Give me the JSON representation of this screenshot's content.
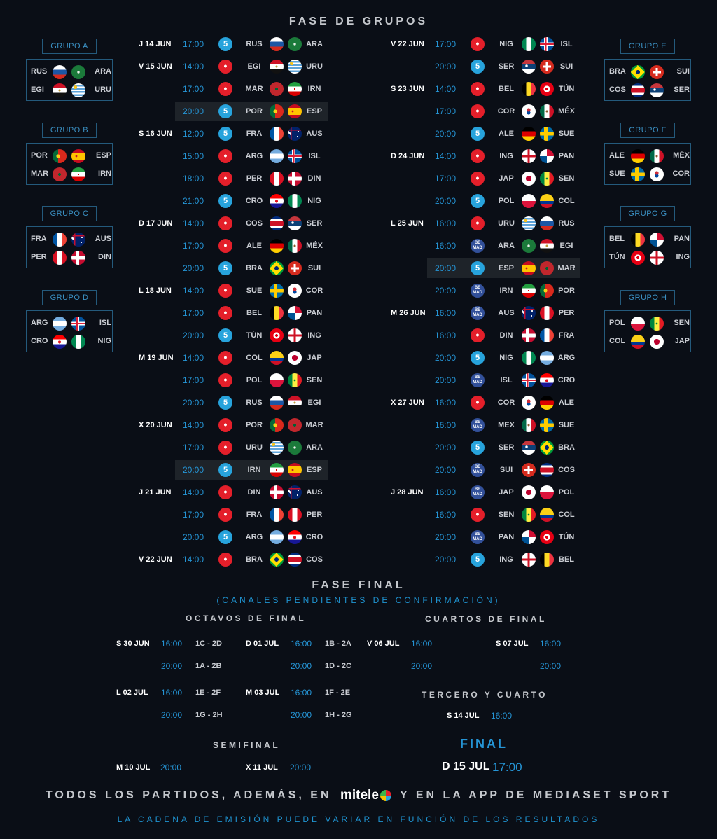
{
  "titles": {
    "groups": "FASE DE GRUPOS",
    "final_phase": "FASE FINAL",
    "final_phase_sub": "(CANALES PENDIENTES DE CONFIRMACIÓN)",
    "octavos": "OCTAVOS DE FINAL",
    "cuartos": "CUARTOS DE FINAL",
    "tercero": "TERCERO Y CUARTO",
    "semifinal": "SEMIFINAL",
    "final": "FINAL",
    "footer_pre": "TODOS LOS PARTIDOS, ADEMÁS, EN",
    "footer_brand": "mitele",
    "footer_post": "Y EN LA APP DE MEDIASET SPORT",
    "footer_note": "LA CADENA DE EMISIÓN PUEDE VARIAR EN FUNCIÓN DE LOS RESULTADOS"
  },
  "channel_icons": {
    "5": "cuatro-five-logo",
    "c": "cuatro-channel-logo",
    "bm": "be-mad-logo"
  },
  "groups": [
    {
      "name": "GRUPO A",
      "teams": [
        "RUS",
        "ARA",
        "EGI",
        "URU"
      ]
    },
    {
      "name": "GRUPO B",
      "teams": [
        "POR",
        "ESP",
        "MAR",
        "IRN"
      ]
    },
    {
      "name": "GRUPO C",
      "teams": [
        "FRA",
        "AUS",
        "PER",
        "DIN"
      ]
    },
    {
      "name": "GRUPO D",
      "teams": [
        "ARG",
        "ISL",
        "CRO",
        "NIG"
      ]
    },
    {
      "name": "GRUPO E",
      "teams": [
        "BRA",
        "SUI",
        "COS",
        "SER"
      ]
    },
    {
      "name": "GRUPO F",
      "teams": [
        "ALE",
        "MÉX",
        "SUE",
        "COR"
      ]
    },
    {
      "name": "GRUPO G",
      "teams": [
        "BEL",
        "PAN",
        "TÚN",
        "ING"
      ]
    },
    {
      "name": "GRUPO H",
      "teams": [
        "POL",
        "SEN",
        "COL",
        "JAP"
      ]
    }
  ],
  "schedule_left": [
    {
      "day": "J 14 JUN",
      "time": "17:00",
      "ch": "5",
      "home": "RUS",
      "away": "ARA"
    },
    {
      "day": "V 15 JUN",
      "time": "14:00",
      "ch": "c",
      "home": "EGI",
      "away": "URU"
    },
    {
      "day": "",
      "time": "17:00",
      "ch": "c",
      "home": "MAR",
      "away": "IRN"
    },
    {
      "day": "",
      "time": "20:00",
      "ch": "5",
      "home": "POR",
      "away": "ESP",
      "hl": true
    },
    {
      "day": "S 16 JUN",
      "time": "12:00",
      "ch": "5",
      "home": "FRA",
      "away": "AUS"
    },
    {
      "day": "",
      "time": "15:00",
      "ch": "c",
      "home": "ARG",
      "away": "ISL"
    },
    {
      "day": "",
      "time": "18:00",
      "ch": "c",
      "home": "PER",
      "away": "DIN"
    },
    {
      "day": "",
      "time": "21:00",
      "ch": "5",
      "home": "CRO",
      "away": "NIG"
    },
    {
      "day": "D 17 JUN",
      "time": "14:00",
      "ch": "c",
      "home": "COS",
      "away": "SER"
    },
    {
      "day": "",
      "time": "17:00",
      "ch": "c",
      "home": "ALE",
      "away": "MÉX"
    },
    {
      "day": "",
      "time": "20:00",
      "ch": "5",
      "home": "BRA",
      "away": "SUI"
    },
    {
      "day": "L 18 JUN",
      "time": "14:00",
      "ch": "c",
      "home": "SUE",
      "away": "COR"
    },
    {
      "day": "",
      "time": "17:00",
      "ch": "c",
      "home": "BEL",
      "away": "PAN"
    },
    {
      "day": "",
      "time": "20:00",
      "ch": "5",
      "home": "TÚN",
      "away": "ING"
    },
    {
      "day": "M 19 JUN",
      "time": "14:00",
      "ch": "c",
      "home": "COL",
      "away": "JAP"
    },
    {
      "day": "",
      "time": "17:00",
      "ch": "c",
      "home": "POL",
      "away": "SEN"
    },
    {
      "day": "",
      "time": "20:00",
      "ch": "5",
      "home": "RUS",
      "away": "EGI"
    },
    {
      "day": "X 20 JUN",
      "time": "14:00",
      "ch": "c",
      "home": "POR",
      "away": "MAR"
    },
    {
      "day": "",
      "time": "17:00",
      "ch": "c",
      "home": "URU",
      "away": "ARA"
    },
    {
      "day": "",
      "time": "20:00",
      "ch": "5",
      "home": "IRN",
      "away": "ESP",
      "hl": true
    },
    {
      "day": "J 21 JUN",
      "time": "14:00",
      "ch": "c",
      "home": "DIN",
      "away": "AUS"
    },
    {
      "day": "",
      "time": "17:00",
      "ch": "c",
      "home": "FRA",
      "away": "PER"
    },
    {
      "day": "",
      "time": "20:00",
      "ch": "5",
      "home": "ARG",
      "away": "CRO"
    },
    {
      "day": "V 22 JUN",
      "time": "14:00",
      "ch": "c",
      "home": "BRA",
      "away": "COS"
    }
  ],
  "schedule_right": [
    {
      "day": "V 22 JUN",
      "time": "17:00",
      "ch": "c",
      "home": "NIG",
      "away": "ISL"
    },
    {
      "day": "",
      "time": "20:00",
      "ch": "5",
      "home": "SER",
      "away": "SUI"
    },
    {
      "day": "S 23 JUN",
      "time": "14:00",
      "ch": "c",
      "home": "BEL",
      "away": "TÚN"
    },
    {
      "day": "",
      "time": "17:00",
      "ch": "c",
      "home": "COR",
      "away": "MÉX"
    },
    {
      "day": "",
      "time": "20:00",
      "ch": "5",
      "home": "ALE",
      "away": "SUE"
    },
    {
      "day": "D 24 JUN",
      "time": "14:00",
      "ch": "c",
      "home": "ING",
      "away": "PAN"
    },
    {
      "day": "",
      "time": "17:00",
      "ch": "c",
      "home": "JAP",
      "away": "SEN"
    },
    {
      "day": "",
      "time": "20:00",
      "ch": "5",
      "home": "POL",
      "away": "COL"
    },
    {
      "day": "L 25 JUN",
      "time": "16:00",
      "ch": "c",
      "home": "URU",
      "away": "RUS"
    },
    {
      "day": "",
      "time": "16:00",
      "ch": "bm",
      "home": "ARA",
      "away": "EGI"
    },
    {
      "day": "",
      "time": "20:00",
      "ch": "5",
      "home": "ESP",
      "away": "MAR",
      "hl": true
    },
    {
      "day": "",
      "time": "20:00",
      "ch": "bm",
      "home": "IRN",
      "away": "POR"
    },
    {
      "day": "M 26 JUN",
      "time": "16:00",
      "ch": "bm",
      "home": "AUS",
      "away": "PER"
    },
    {
      "day": "",
      "time": "16:00",
      "ch": "c",
      "home": "DIN",
      "away": "FRA"
    },
    {
      "day": "",
      "time": "20:00",
      "ch": "5",
      "home": "NIG",
      "away": "ARG"
    },
    {
      "day": "",
      "time": "20:00",
      "ch": "bm",
      "home": "ISL",
      "away": "CRO"
    },
    {
      "day": "X 27 JUN",
      "time": "16:00",
      "ch": "c",
      "home": "COR",
      "away": "ALE"
    },
    {
      "day": "",
      "time": "16:00",
      "ch": "bm",
      "home": "MEX",
      "away": "SUE"
    },
    {
      "day": "",
      "time": "20:00",
      "ch": "5",
      "home": "SER",
      "away": "BRA"
    },
    {
      "day": "",
      "time": "20:00",
      "ch": "bm",
      "home": "SUI",
      "away": "COS"
    },
    {
      "day": "J 28 JUN",
      "time": "16:00",
      "ch": "bm",
      "home": "JAP",
      "away": "POL"
    },
    {
      "day": "",
      "time": "16:00",
      "ch": "c",
      "home": "SEN",
      "away": "COL"
    },
    {
      "day": "",
      "time": "20:00",
      "ch": "bm",
      "home": "PAN",
      "away": "TÚN"
    },
    {
      "day": "",
      "time": "20:00",
      "ch": "5",
      "home": "ING",
      "away": "BEL"
    }
  ],
  "octavos": [
    {
      "day": "S 30 JUN",
      "t1": "16:00",
      "m1": "1C - 2D",
      "t2": "20:00",
      "m2": "1A - 2B"
    },
    {
      "day": "D 01 JUL",
      "t1": "16:00",
      "m1": "1B - 2A",
      "t2": "20:00",
      "m2": "1D - 2C"
    },
    {
      "day": "L 02 JUL",
      "t1": "16:00",
      "m1": "1E - 2F",
      "t2": "20:00",
      "m2": "1G - 2H"
    },
    {
      "day": "M 03 JUL",
      "t1": "16:00",
      "m1": "1F - 2E",
      "t2": "20:00",
      "m2": "1H - 2G"
    }
  ],
  "cuartos": [
    {
      "day": "V 06 JUL",
      "t1": "16:00",
      "t2": "20:00"
    },
    {
      "day": "S 07 JUL",
      "t1": "16:00",
      "t2": "20:00"
    }
  ],
  "tercero": {
    "day": "S 14 JUL",
    "time": "16:00"
  },
  "semis": [
    {
      "day": "M 10 JUL",
      "time": "20:00"
    },
    {
      "day": "X 11 JUL",
      "time": "20:00"
    }
  ],
  "final": {
    "day": "D 15 JUL",
    "time": "17:00"
  }
}
